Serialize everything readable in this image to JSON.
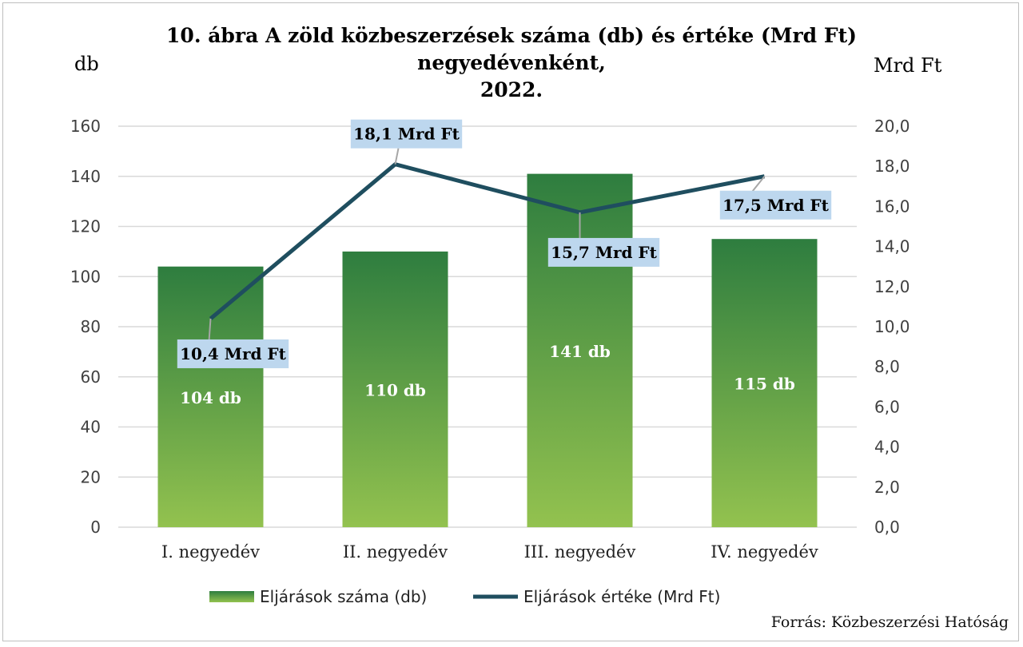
{
  "chart_data": {
    "type": "bar+line",
    "title_line1": "10. ábra A zöld közbeszerzések száma (db) és értéke (Mrd Ft)  negyedévenként,",
    "title_line2": "2022.",
    "ylabel_left": "db",
    "ylabel_right": "Mrd Ft",
    "categories": [
      "I. negyedév",
      "II. negyedév",
      "III. negyedév",
      "IV. negyedév"
    ],
    "ylim_left": [
      0,
      160
    ],
    "yticks_left": [
      "0",
      "20",
      "40",
      "60",
      "80",
      "100",
      "120",
      "140",
      "160"
    ],
    "ylim_right": [
      0,
      20
    ],
    "yticks_right": [
      "0,0",
      "2,0",
      "4,0",
      "6,0",
      "8,0",
      "10,0",
      "12,0",
      "14,0",
      "16,0",
      "18,0",
      "20,0"
    ],
    "series": [
      {
        "name": "Eljárások száma (db)",
        "kind": "bar",
        "axis": "left",
        "values": [
          104,
          110,
          141,
          115
        ],
        "labels": [
          "104 db",
          "110 db",
          "141 db",
          "115 db"
        ]
      },
      {
        "name": "Eljárások értéke (Mrd Ft)",
        "kind": "line",
        "axis": "right",
        "values": [
          10.4,
          18.1,
          15.7,
          17.5
        ],
        "labels": [
          "10,4 Mrd Ft",
          "18,1 Mrd Ft",
          "15,7 Mrd Ft",
          "17,5 Mrd Ft"
        ]
      }
    ],
    "grid": true,
    "legend_position": "bottom"
  },
  "colors": {
    "bar_top": "#2e7d3f",
    "bar_bottom": "#93c24f",
    "line": "#1f4e5f",
    "label_box": "#bdd7ee",
    "grid": "#d9d9d9",
    "leader": "#a6a6a6"
  },
  "source": "Forrás: Közbeszerzési Hatóság"
}
